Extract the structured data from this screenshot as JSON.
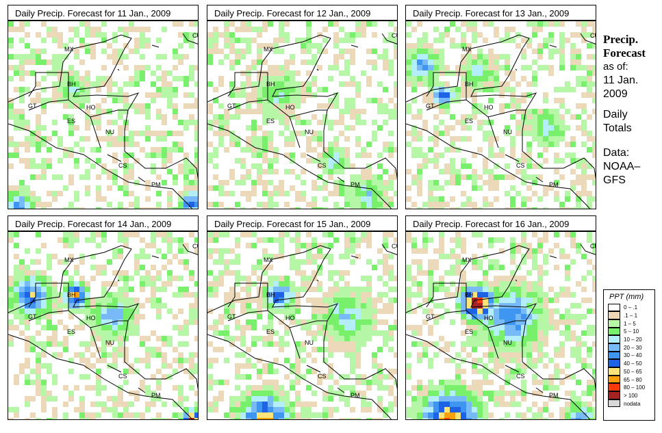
{
  "panels": [
    {
      "title": "Daily Precip. Forecast for  11 Jan., 2009"
    },
    {
      "title": "Daily Precip. Forecast for  12 Jan., 2009"
    },
    {
      "title": "Daily Precip. Forecast for  13 Jan., 2009"
    },
    {
      "title": "Daily Precip. Forecast for  14 Jan., 2009"
    },
    {
      "title": "Daily Precip. Forecast for  15 Jan., 2009"
    },
    {
      "title": "Daily Precip. Forecast for  16 Jan., 2009"
    }
  ],
  "country_labels": [
    "MX",
    "CU",
    "BH",
    "GT",
    "HO",
    "ES",
    "NU",
    "CS",
    "PM"
  ],
  "side": {
    "title1": "Precip.",
    "title2": "Forecast",
    "asof": "as of:",
    "date1": "11 Jan.",
    "date2": "2009",
    "daily1": "Daily",
    "daily2": "Totals",
    "data1": "Data:",
    "data2": "NOAA–",
    "data3": "GFS"
  },
  "legend": {
    "title": "PPT (mm)",
    "items": [
      {
        "label": "0 – .1",
        "color": "#ffffff"
      },
      {
        "label": ".1 – 1",
        "color": "#ecd9b9"
      },
      {
        "label": "1 – 5",
        "color": "#b5f7a6"
      },
      {
        "label": "5 – 10",
        "color": "#78f06c"
      },
      {
        "label": "10 – 20",
        "color": "#b4eefa"
      },
      {
        "label": "20 – 30",
        "color": "#78b9f8"
      },
      {
        "label": "30 – 40",
        "color": "#3f96f1"
      },
      {
        "label": "40 – 50",
        "color": "#1e62e6"
      },
      {
        "label": "50 – 65",
        "color": "#fde57a"
      },
      {
        "label": "65 – 80",
        "color": "#fea00a"
      },
      {
        "label": "80 – 100",
        "color": "#fc3a0a"
      },
      {
        "label": "> 100",
        "color": "#a52222"
      },
      {
        "label": "nodata",
        "color": "#d8d8d8"
      }
    ]
  }
}
